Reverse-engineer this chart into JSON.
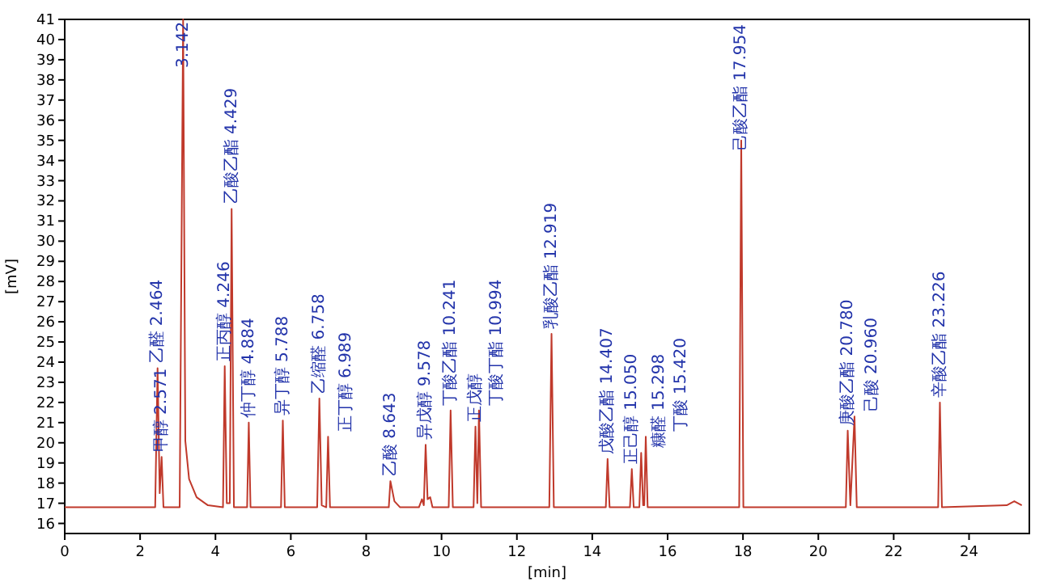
{
  "chart_data": {
    "type": "line",
    "xlabel": "[min]",
    "ylabel": "[mV]",
    "color": "#c0392b",
    "xlim": [
      0,
      25.6
    ],
    "ylim": [
      15.5,
      41
    ],
    "xticks": [
      0,
      2,
      4,
      6,
      8,
      10,
      12,
      14,
      16,
      18,
      20,
      22,
      24
    ],
    "yticks": [
      16,
      17,
      18,
      19,
      20,
      21,
      22,
      23,
      24,
      25,
      26,
      27,
      28,
      29,
      30,
      31,
      32,
      33,
      34,
      35,
      36,
      37,
      38,
      39,
      40,
      41
    ],
    "x": [
      0,
      2.4,
      2.464,
      2.52,
      2.571,
      2.62,
      3.05,
      3.142,
      3.2,
      3.3,
      3.5,
      3.8,
      4.2,
      4.246,
      4.3,
      4.38,
      4.429,
      4.49,
      4.84,
      4.884,
      4.93,
      5.74,
      5.788,
      5.84,
      6.7,
      6.758,
      6.82,
      6.94,
      6.989,
      7.04,
      8.6,
      8.643,
      8.75,
      8.9,
      9.4,
      9.48,
      9.53,
      9.578,
      9.63,
      9.7,
      9.76,
      10.19,
      10.241,
      10.3,
      10.85,
      10.9,
      10.95,
      10.994,
      11.05,
      12.86,
      12.919,
      12.98,
      14.36,
      14.407,
      14.46,
      15.0,
      15.05,
      15.1,
      15.25,
      15.298,
      15.35,
      15.38,
      15.42,
      15.47,
      17.9,
      17.954,
      18.01,
      20.73,
      20.78,
      20.85,
      20.96,
      21.02,
      23.18,
      23.226,
      23.28,
      25.0,
      25.2,
      25.4
    ],
    "values": [
      16.8,
      16.8,
      23.7,
      17.5,
      19.3,
      16.8,
      16.8,
      41,
      20.1,
      18.2,
      17.3,
      16.9,
      16.8,
      23.8,
      17.0,
      17.0,
      31.6,
      16.8,
      16.8,
      21.0,
      16.8,
      16.8,
      21.1,
      16.8,
      16.8,
      22.2,
      16.9,
      16.8,
      20.3,
      16.8,
      16.8,
      18.1,
      17.1,
      16.8,
      16.8,
      17.2,
      16.9,
      19.9,
      17.2,
      17.3,
      16.8,
      16.8,
      21.6,
      16.8,
      16.8,
      20.8,
      17.0,
      21.6,
      16.8,
      16.8,
      25.4,
      16.8,
      16.8,
      19.2,
      16.8,
      16.8,
      18.7,
      16.8,
      16.8,
      19.5,
      16.9,
      16.9,
      20.3,
      16.8,
      16.8,
      35.0,
      16.8,
      16.8,
      20.6,
      16.9,
      21.3,
      16.8,
      16.8,
      22.0,
      16.8,
      16.9,
      17.1,
      16.9
    ],
    "annotations": [
      {
        "text": "乙醛 2.464",
        "x": 2.464,
        "y": 23.7
      },
      {
        "text": "甲醇 2.571",
        "x": 2.571,
        "y": 19.3
      },
      {
        "text": "3.142",
        "x": 3.142,
        "y": 41
      },
      {
        "text": "正丙醇 4.246",
        "x": 4.246,
        "y": 23.8
      },
      {
        "text": "乙酸乙酯 4.429",
        "x": 4.429,
        "y": 31.6
      },
      {
        "text": "仲丁醇 4.884",
        "x": 4.884,
        "y": 21.0
      },
      {
        "text": "异丁醇 5.788",
        "x": 5.788,
        "y": 21.1
      },
      {
        "text": "乙缩醛 6.758",
        "x": 6.758,
        "y": 22.2
      },
      {
        "text": "正丁醇 6.989",
        "x": 6.989,
        "y": 20.3
      },
      {
        "text": "乙酸 8.643",
        "x": 8.643,
        "y": 18.1
      },
      {
        "text": "异戊醇 9.578",
        "x": 9.578,
        "y": 19.9
      },
      {
        "text": "丁酸乙酯 10.241",
        "x": 10.241,
        "y": 21.6
      },
      {
        "text": "正戊醇",
        "x": 10.9,
        "y": 20.8
      },
      {
        "text": "丁酸丁酯 10.994",
        "x": 10.994,
        "y": 21.6
      },
      {
        "text": "乳酸乙酯 12.919",
        "x": 12.919,
        "y": 25.4
      },
      {
        "text": "戊酸乙酯 14.407",
        "x": 14.407,
        "y": 19.2
      },
      {
        "text": "正己醇 15.050",
        "x": 15.05,
        "y": 18.7
      },
      {
        "text": "糠醛 15.298",
        "x": 15.298,
        "y": 19.5
      },
      {
        "text": "丁酸 15.420",
        "x": 15.42,
        "y": 20.3
      },
      {
        "text": "己酸乙酯 17.954",
        "x": 17.954,
        "y": 35.0
      },
      {
        "text": "庚酸乙酯 20.780",
        "x": 20.78,
        "y": 20.6
      },
      {
        "text": "己酸 20.960",
        "x": 20.96,
        "y": 21.3
      },
      {
        "text": "辛酸乙酯 23.226",
        "x": 23.226,
        "y": 22.0
      }
    ]
  }
}
